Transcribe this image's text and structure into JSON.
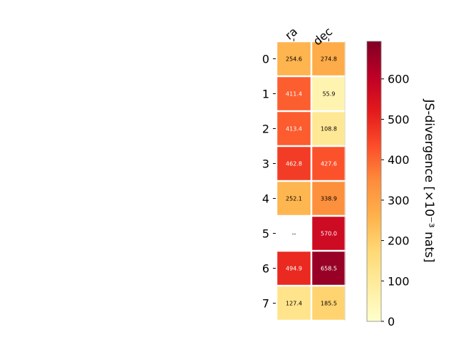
{
  "chart_data": {
    "type": "heatmap",
    "columns": [
      "ra",
      "dec"
    ],
    "rows": [
      "0",
      "1",
      "2",
      "3",
      "4",
      "5",
      "6",
      "7"
    ],
    "values": [
      [
        254.6,
        274.8
      ],
      [
        411.4,
        55.9
      ],
      [
        413.4,
        108.8
      ],
      [
        462.8,
        427.6
      ],
      [
        252.1,
        338.9
      ],
      [
        null,
        570.0
      ],
      [
        494.9,
        658.5
      ],
      [
        127.4,
        185.5
      ]
    ],
    "cell_labels": [
      [
        "254.6",
        "274.8"
      ],
      [
        "411.4",
        "55.9"
      ],
      [
        "413.4",
        "108.8"
      ],
      [
        "462.8",
        "427.6"
      ],
      [
        "252.1",
        "338.9"
      ],
      [
        "--",
        "570.0"
      ],
      [
        "494.9",
        "658.5"
      ],
      [
        "127.4",
        "185.5"
      ]
    ],
    "colorbar": {
      "label": "JS-divergence [×10⁻³ nats]",
      "range": [
        0,
        693
      ],
      "ticks": [
        0,
        100,
        200,
        300,
        400,
        500,
        600
      ],
      "colormap": "YlOrRd"
    },
    "colormap_stops": [
      "#ffffcc",
      "#ffeda0",
      "#fed976",
      "#feb24c",
      "#fd8d3c",
      "#fc4e2a",
      "#e31a1c",
      "#bd0026",
      "#800026"
    ],
    "missing_color": "#ffffff",
    "grid": false,
    "legend": "colorbar-right"
  }
}
